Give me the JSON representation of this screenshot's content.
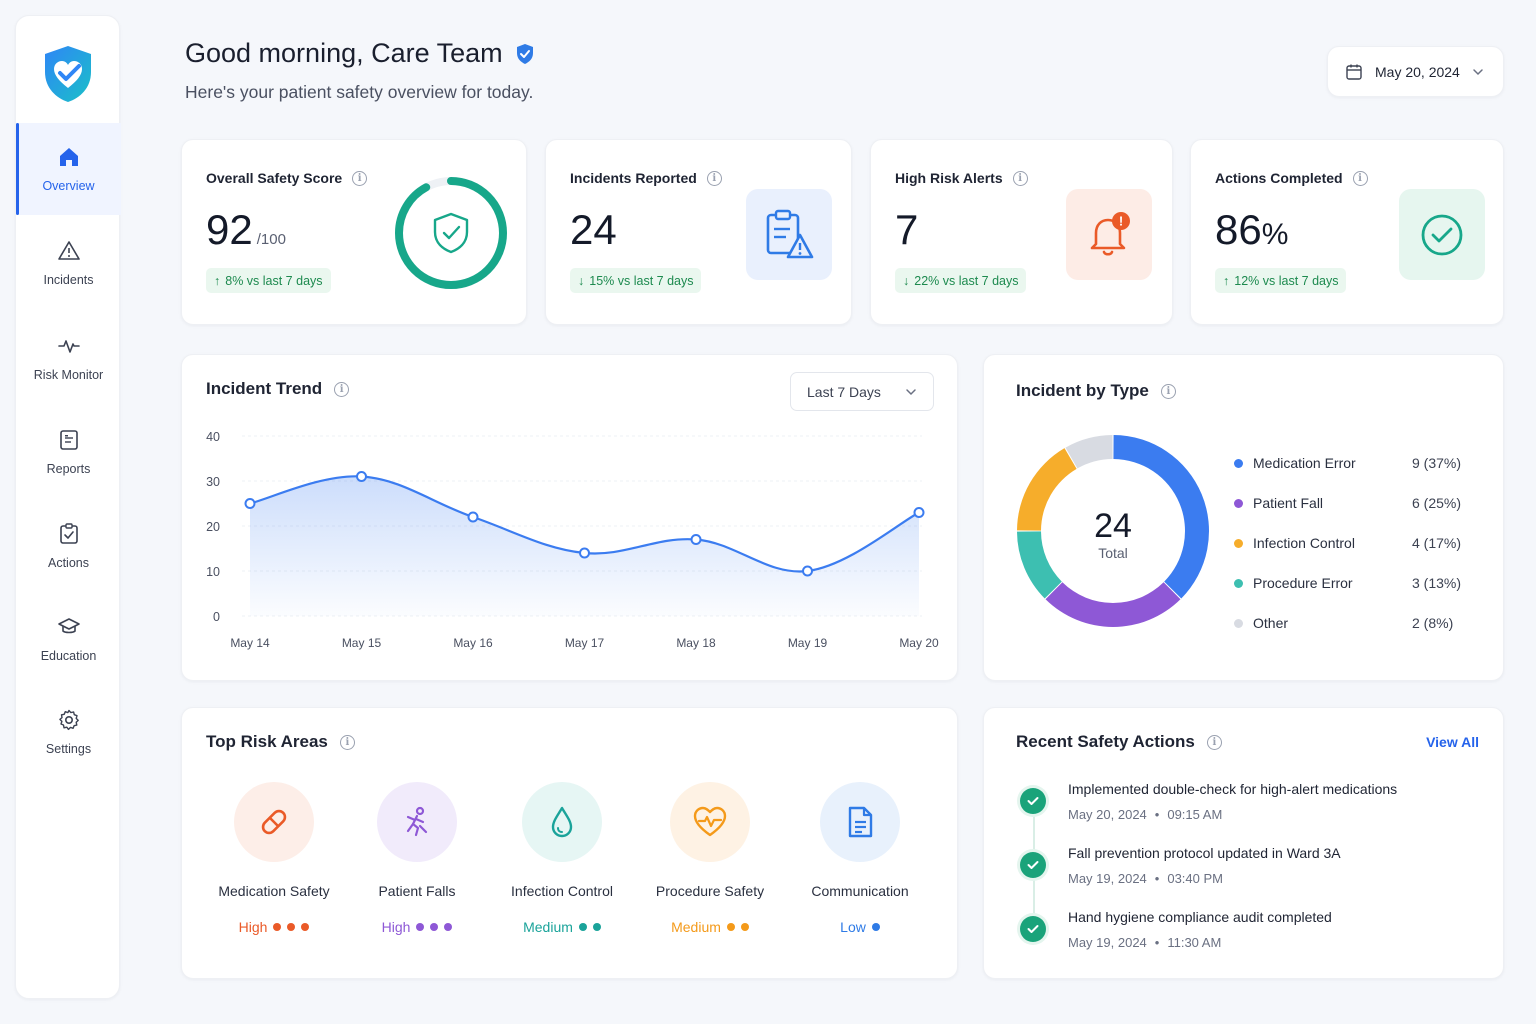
{
  "header": {
    "greeting": "Good morning, Care Team",
    "subtitle": "Here's your patient safety overview for today.",
    "date": "May 20, 2024"
  },
  "sidebar": {
    "items": [
      {
        "label": "Overview",
        "icon": "home-icon"
      },
      {
        "label": "Incidents",
        "icon": "warning-icon"
      },
      {
        "label": "Risk Monitor",
        "icon": "pulse-icon"
      },
      {
        "label": "Reports",
        "icon": "report-icon"
      },
      {
        "label": "Actions",
        "icon": "clipboard-check-icon"
      },
      {
        "label": "Education",
        "icon": "graduation-cap-icon"
      },
      {
        "label": "Settings",
        "icon": "gear-icon"
      }
    ]
  },
  "kpis": {
    "safety": {
      "title": "Overall Safety Score",
      "value": "92",
      "unit": "/100",
      "delta": "8% vs last 7 days",
      "score_fraction": 0.92
    },
    "incidents": {
      "title": "Incidents Reported",
      "value": "24",
      "delta": "15% vs last 7 days"
    },
    "alerts": {
      "title": "High Risk Alerts",
      "value": "7",
      "delta": "22% vs last 7 days"
    },
    "actions": {
      "title": "Actions Completed",
      "value": "86",
      "unit": "%",
      "delta": "12% vs last 7 days"
    }
  },
  "trend": {
    "title": "Incident Trend",
    "range": "Last 7 Days"
  },
  "by_type": {
    "title": "Incident by Type",
    "total": "24",
    "total_label": "Total"
  },
  "chart_data": [
    {
      "type": "area",
      "title": "Incident Trend",
      "categories": [
        "May 14",
        "May 15",
        "May 16",
        "May 17",
        "May 18",
        "May 19",
        "May 20"
      ],
      "values": [
        25,
        31,
        22,
        14,
        17,
        10,
        23
      ],
      "ylim": [
        0,
        40
      ],
      "yticks": [
        "0",
        "10",
        "20",
        "30",
        "40"
      ],
      "grid": true,
      "color": "#3b7cf0"
    },
    {
      "type": "pie",
      "title": "Incident by Type",
      "slices": [
        {
          "label": "Medication Error",
          "value": 9,
          "display": "9 (37%)",
          "color": "#3b7cf0"
        },
        {
          "label": "Patient Fall",
          "value": 6,
          "display": "6 (25%)",
          "color": "#8e58d6"
        },
        {
          "label": "Infection Control",
          "value": 4,
          "display": "4 (17%)",
          "color": "#f6ad2b"
        },
        {
          "label": "Procedure Error",
          "value": 3,
          "display": "3 (13%)",
          "color": "#3dbfb1"
        },
        {
          "label": "Other",
          "value": 2,
          "display": "2 (8%)",
          "color": "#d8dbe2"
        }
      ],
      "slice_order_clockwise_from_top": [
        "Medication Error",
        "Patient Fall",
        "Procedure Error",
        "Infection Control",
        "Other"
      ]
    }
  ],
  "risk_areas": {
    "title": "Top Risk Areas",
    "items": [
      {
        "name": "Medication Safety",
        "level": "High",
        "dots": 3,
        "color": "#ea5a28",
        "bg": "#fdeee8",
        "icon": "pill-icon"
      },
      {
        "name": "Patient Falls",
        "level": "High",
        "dots": 3,
        "color": "#8e58d6",
        "bg": "#f1ebfb",
        "icon": "falling-person-icon"
      },
      {
        "name": "Infection Control",
        "level": "Medium",
        "dots": 2,
        "color": "#1aa39a",
        "bg": "#e6f6f4",
        "icon": "droplet-icon"
      },
      {
        "name": "Procedure Safety",
        "level": "Medium",
        "dots": 2,
        "color": "#f49a1a",
        "bg": "#fef2e4",
        "icon": "heart-pulse-icon"
      },
      {
        "name": "Communication",
        "level": "Low",
        "dots": 1,
        "color": "#2f7be6",
        "bg": "#e8f1fc",
        "icon": "document-icon"
      }
    ]
  },
  "recent_actions": {
    "title": "Recent Safety Actions",
    "view_all": "View All",
    "items": [
      {
        "title": "Implemented double-check for high-alert medications",
        "date": "May 20, 2024",
        "time": "09:15 AM"
      },
      {
        "title": "Fall prevention protocol updated in Ward 3A",
        "date": "May 19, 2024",
        "time": "03:40 PM"
      },
      {
        "title": "Hand hygiene compliance audit completed",
        "date": "May 19, 2024",
        "time": "11:30 AM"
      }
    ]
  },
  "colors": {
    "accent": "#2563eb",
    "success": "#1aa37a",
    "positive_delta_bg": "#eaf7ef"
  }
}
